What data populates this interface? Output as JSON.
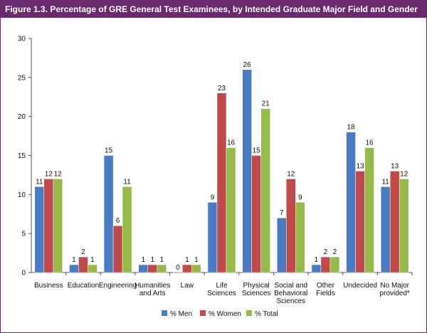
{
  "title": "Figure 1.3. Percentage of GRE General Test Examinees, by Intended Graduate Major Field and Gender",
  "colors": {
    "title_bar": "#6a2a6e",
    "men": "#4a7cc4",
    "women": "#c04a4a",
    "total": "#96bb4a"
  },
  "chart_data": {
    "type": "bar",
    "categories": [
      [
        "Business"
      ],
      [
        "Education"
      ],
      [
        "Engineering"
      ],
      [
        "Humanities",
        "and Arts"
      ],
      [
        "Law"
      ],
      [
        "Life",
        "Sciences"
      ],
      [
        "Physical",
        "Sciences"
      ],
      [
        "Social and",
        "Behavioral",
        "Sciences"
      ],
      [
        "Other",
        "Fields"
      ],
      [
        "Undecided"
      ],
      [
        "No Major",
        "provided*"
      ]
    ],
    "series": [
      {
        "name": "% Men",
        "values": [
          11,
          1,
          15,
          1,
          0,
          9,
          26,
          7,
          1,
          18,
          11
        ]
      },
      {
        "name": "% Women",
        "values": [
          12,
          2,
          6,
          1,
          1,
          23,
          15,
          12,
          2,
          13,
          13
        ]
      },
      {
        "name": "% Total",
        "values": [
          12,
          1,
          11,
          1,
          1,
          16,
          21,
          9,
          2,
          16,
          12
        ]
      }
    ],
    "ylim": [
      0,
      30
    ],
    "yticks": [
      0,
      5,
      10,
      15,
      20,
      25,
      30
    ],
    "legend_position": "bottom",
    "grid": false
  }
}
